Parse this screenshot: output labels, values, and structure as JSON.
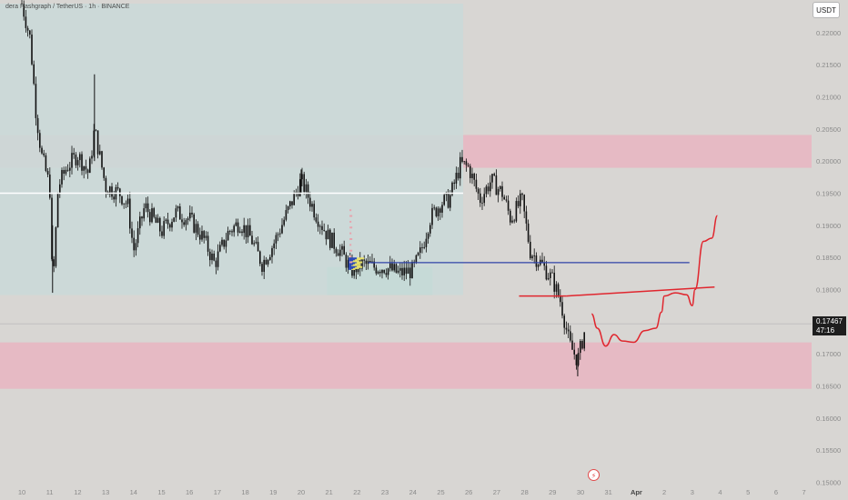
{
  "header": {
    "title": "dera Hashgraph / TetherUS · 1h · BINANCE",
    "unit_button": "USDT"
  },
  "price_tag": {
    "price": "0.17467",
    "countdown": "47:16"
  },
  "colors": {
    "background": "#d8d6d3",
    "candle": "#111111",
    "supply_zone": "#e9b5c1",
    "range_box": "#cbd9d8",
    "white_line": "#ffffff",
    "blue_line": "#2f43a8",
    "red_projection": "#e0262e",
    "volume_profile_blue": "#2b49b8",
    "volume_profile_yellow": "#e9e26a",
    "volume_profile_pink": "#e7a3ad"
  },
  "flash_icon": "lightning-icon",
  "chart_data": {
    "type": "candlestick",
    "title": "",
    "xlabel": "",
    "ylabel": "",
    "x_ticks": [
      "10",
      "11",
      "12",
      "13",
      "14",
      "15",
      "16",
      "17",
      "18",
      "19",
      "20",
      "21",
      "22",
      "23",
      "24",
      "25",
      "26",
      "27",
      "28",
      "29",
      "30",
      "31",
      "Apr",
      "2",
      "3",
      "4",
      "5",
      "6",
      "7"
    ],
    "y_ticks": [
      "0.22000",
      "0.21500",
      "0.21000",
      "0.20500",
      "0.20000",
      "0.19500",
      "0.19000",
      "0.18500",
      "0.18000",
      "0.17500",
      "0.17000",
      "0.16500",
      "0.16000",
      "0.15500",
      "0.15000"
    ],
    "ylim": [
      0.1498,
      0.2245
    ],
    "price_path": [
      [
        "10",
        0.2245
      ],
      [
        "10.3",
        0.219
      ],
      [
        "10.5",
        0.208
      ],
      [
        "10.7",
        0.201
      ],
      [
        "11",
        0.196
      ],
      [
        "11.1",
        0.1795
      ],
      [
        "11.3",
        0.196
      ],
      [
        "11.6",
        0.199
      ],
      [
        "12",
        0.201
      ],
      [
        "12.4",
        0.198
      ],
      [
        "12.6",
        0.205
      ],
      [
        "13",
        0.196
      ],
      [
        "13.5",
        0.195
      ],
      [
        "13.8",
        0.193
      ],
      [
        "14",
        0.186
      ],
      [
        "14.4",
        0.193
      ],
      [
        "15",
        0.189
      ],
      [
        "15.5",
        0.192
      ],
      [
        "16",
        0.191
      ],
      [
        "16.5",
        0.188
      ],
      [
        "16.9",
        0.184
      ],
      [
        "17.4",
        0.189
      ],
      [
        "17.8",
        0.1905
      ],
      [
        "18.2",
        0.188
      ],
      [
        "18.6",
        0.184
      ],
      [
        "19",
        0.187
      ],
      [
        "19.5",
        0.192
      ],
      [
        "20",
        0.197
      ],
      [
        "20.5",
        0.192
      ],
      [
        "21",
        0.188
      ],
      [
        "21.4",
        0.186
      ],
      [
        "21.8",
        0.183
      ],
      [
        "22.2",
        0.184
      ],
      [
        "22.6",
        0.1835
      ],
      [
        "23",
        0.1835
      ],
      [
        "23.5",
        0.1825
      ],
      [
        "24",
        0.183
      ],
      [
        "24.3",
        0.186
      ],
      [
        "24.6",
        0.191
      ],
      [
        "25",
        0.1935
      ],
      [
        "25.3",
        0.194
      ],
      [
        "25.7",
        0.1995
      ],
      [
        "26",
        0.199
      ],
      [
        "26.4",
        0.194
      ],
      [
        "26.8",
        0.197
      ],
      [
        "27.2",
        0.195
      ],
      [
        "27.5",
        0.191
      ],
      [
        "27.9",
        0.194
      ],
      [
        "28.2",
        0.186
      ],
      [
        "28.6",
        0.184
      ],
      [
        "29",
        0.1815
      ],
      [
        "29.3",
        0.178
      ],
      [
        "29.6",
        0.1715
      ],
      [
        "29.9",
        0.169
      ],
      [
        "30.2",
        0.1745
      ]
    ],
    "zones": [
      {
        "kind": "supply",
        "y_range": [
          0.19895,
          0.20406
        ],
        "x_range": [
          "10",
          "7"
        ]
      },
      {
        "kind": "demand",
        "y_range": [
          0.16456,
          0.17178
        ],
        "x_range": [
          "10",
          "7"
        ]
      },
      {
        "kind": "range",
        "y_range": [
          0.17915,
          0.2245
        ],
        "x_range": [
          "10",
          "25.8"
        ]
      },
      {
        "kind": "range",
        "y_range": [
          0.17915,
          0.1835
        ],
        "x_range": [
          "21.7",
          "24.7"
        ]
      }
    ],
    "levels": [
      {
        "color": "white",
        "y": 0.195,
        "x_range": [
          "10",
          "25.8"
        ]
      },
      {
        "color": "blue",
        "y": 0.1842,
        "x_range": [
          "22.4",
          "Apr 1.9"
        ]
      }
    ],
    "projection": [
      [
        "27.8",
        0.179
      ],
      [
        "29.5",
        0.179
      ],
      [
        "Apr 2.8",
        0.1804
      ],
      [
        "30.4",
        0.1762
      ],
      [
        "30.6",
        0.174
      ],
      [
        "30.9",
        0.1712
      ],
      [
        "31.2",
        0.173
      ],
      [
        "31.5",
        0.172
      ],
      [
        "31.9",
        0.1718
      ],
      [
        "Apr 0.3",
        0.1736
      ],
      [
        "Apr 0.7",
        0.174
      ],
      [
        "Apr 0.9",
        0.1765
      ],
      [
        "Apr 1.0",
        0.179
      ],
      [
        "Apr 1.4",
        0.1795
      ],
      [
        "Apr 1.8",
        0.1792
      ],
      [
        "Apr 2.0",
        0.1775
      ],
      [
        "Apr 2.1",
        0.18
      ],
      [
        "Apr 2.4",
        0.1875
      ],
      [
        "Apr 2.7",
        0.188
      ],
      [
        "Apr 2.9",
        0.1915
      ]
    ]
  }
}
